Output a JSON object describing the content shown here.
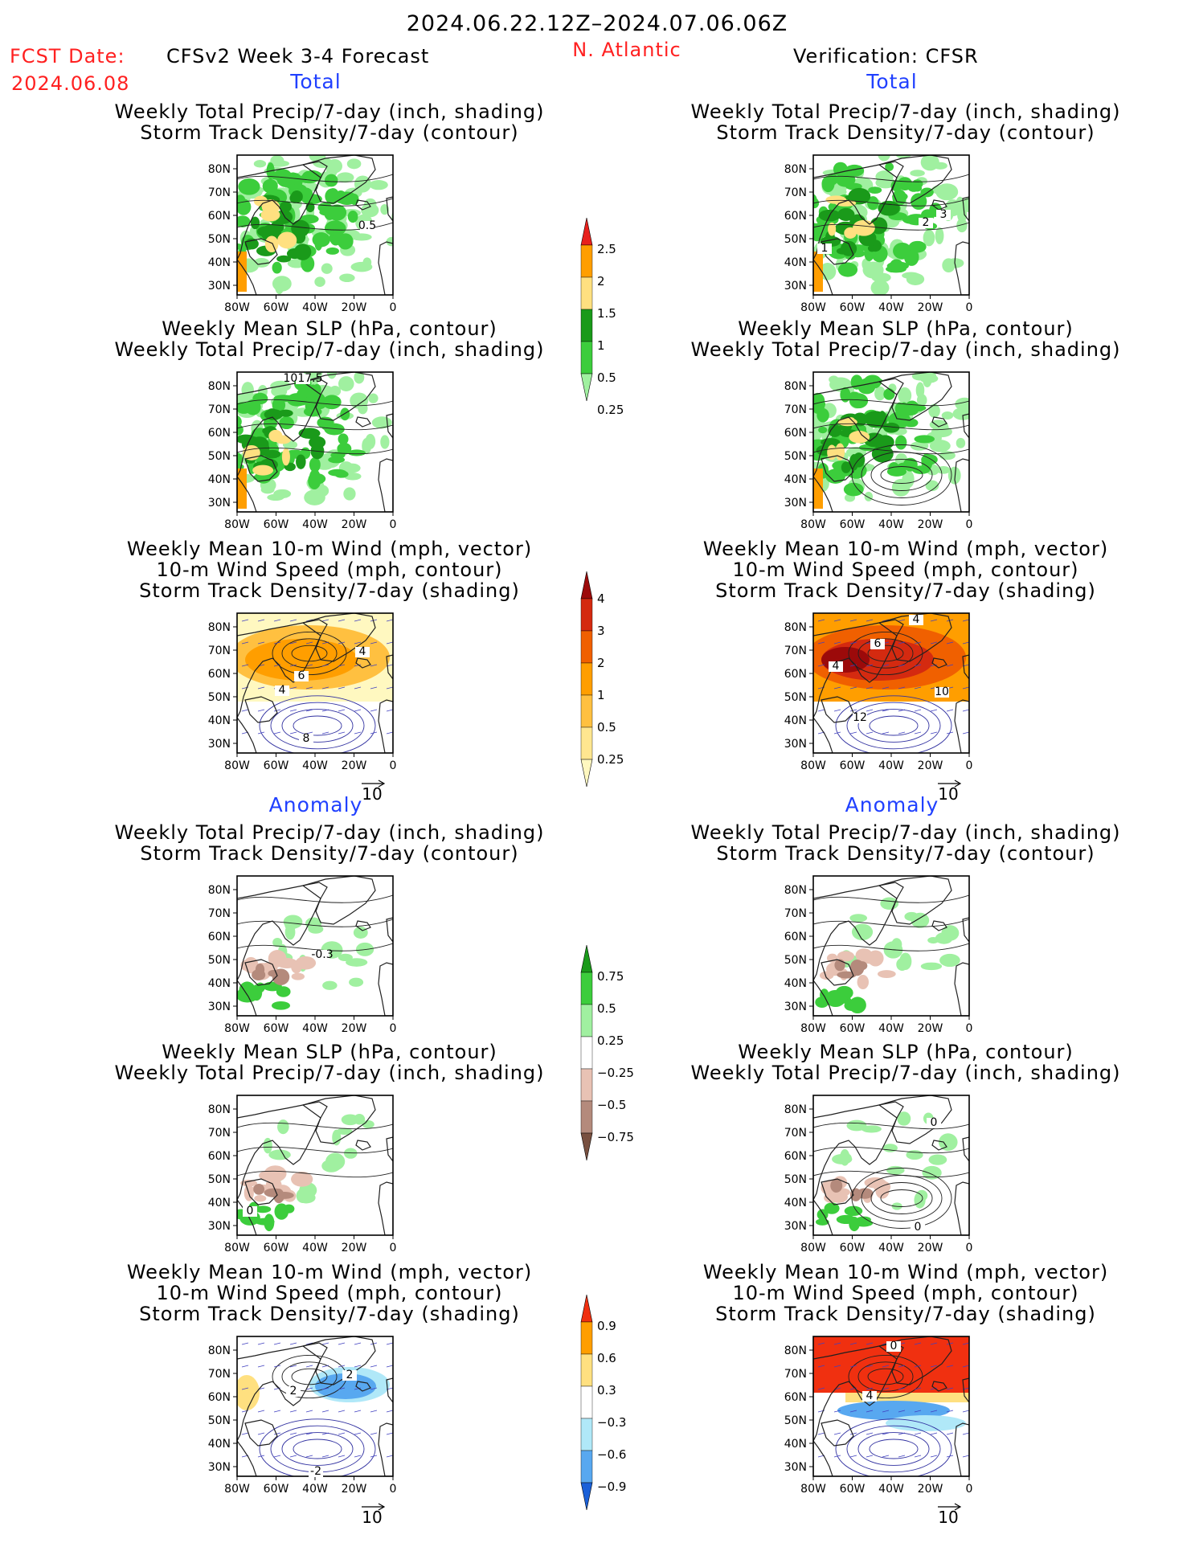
{
  "header": {
    "date_range": "2024.06.22.12Z–2024.07.06.06Z",
    "fcst_label": "FCST Date:",
    "fcst_date": "2024.06.08",
    "forecast_title": "CFSv2 Week 3-4 Forecast",
    "region": "N. Atlantic",
    "verification": "Verification: CFSR"
  },
  "sections": {
    "total": "Total",
    "anomaly": "Anomaly"
  },
  "panel_titles": {
    "precip_storm": [
      "Weekly Total Precip/7-day (inch, shading)",
      "Storm Track Density/7-day (contour)"
    ],
    "slp_precip": [
      "Weekly Mean SLP (hPa, contour)",
      "Weekly Total Precip/7-day (inch, shading)"
    ],
    "wind_storm": [
      "Weekly Mean 10-m Wind (mph, vector)",
      "10-m Wind Speed (mph, contour)",
      "Storm Track Density/7-day (shading)"
    ]
  },
  "axes": {
    "lat_ticks": [
      "80N",
      "70N",
      "60N",
      "50N",
      "40N",
      "30N"
    ],
    "lon_ticks": [
      "80W",
      "60W",
      "40W",
      "20W",
      "0"
    ]
  },
  "vector_ref": "10",
  "contour_labels": {
    "fcst_total_precip": [
      "0.5"
    ],
    "cfsr_total_precip": [
      "1",
      "2",
      "3"
    ],
    "fcst_total_slp": [
      "1017.5"
    ],
    "fcst_total_wind": [
      "4",
      "6",
      "4",
      "8"
    ],
    "cfsr_total_wind": [
      "4",
      "6",
      "4",
      "10",
      "12"
    ],
    "fcst_anom_precip": [
      "-0.3"
    ],
    "fcst_anom_slp": [
      "0"
    ],
    "cfsr_anom_slp": [
      "0",
      "0"
    ],
    "fcst_anom_wind": [
      "2",
      "2",
      "-2"
    ],
    "cfsr_anom_wind": [
      "0",
      "4"
    ]
  },
  "colorbars": {
    "precip_total": {
      "labels": [
        "2.5",
        "2",
        "1.5",
        "1",
        "0.5",
        "0.25"
      ],
      "colors": [
        "#e8201c",
        "#ff9e00",
        "#ffe080",
        "#1a9a1a",
        "#3ccd3c",
        "#a0f0a0"
      ]
    },
    "storm_total": {
      "labels": [
        "4",
        "3",
        "2",
        "1",
        "0.5",
        "0.25"
      ],
      "colors": [
        "#9c0a0a",
        "#d42a10",
        "#f06000",
        "#ff9e00",
        "#ffc040",
        "#ffe690",
        "#fff8c0"
      ]
    },
    "precip_anom": {
      "labels": [
        "0.75",
        "0.5",
        "0.25",
        "−0.25",
        "−0.5",
        "−0.75"
      ],
      "colors": [
        "#1a9a1a",
        "#3ccd3c",
        "#a0f0a0",
        "#ffffff",
        "#e8c2b4",
        "#b48a7c",
        "#785040"
      ]
    },
    "storm_anom": {
      "labels": [
        "0.9",
        "0.6",
        "0.3",
        "−0.3",
        "−0.6",
        "−0.9"
      ],
      "colors": [
        "#f03010",
        "#ff9e00",
        "#ffe080",
        "#ffffff",
        "#b0e8f8",
        "#58a8f0",
        "#1a60d8"
      ]
    }
  }
}
